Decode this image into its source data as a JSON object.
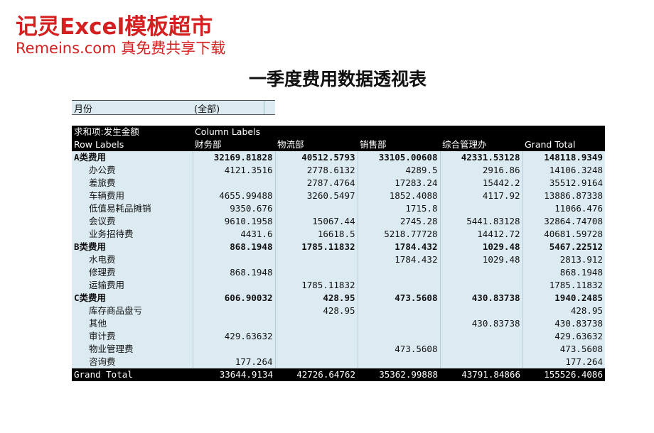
{
  "watermark": {
    "line1": "记灵Excel模板超市",
    "line2": "Remeins.com 真免费共享下载"
  },
  "title": "一季度费用数据透视表",
  "filter": {
    "label": "月份",
    "value": "(全部)"
  },
  "pivot": {
    "value_field": "求和项:发生金额",
    "column_labels": "Column Labels",
    "row_labels": "Row Labels",
    "columns": [
      "财务部",
      "物流部",
      "销售部",
      "综合管理办",
      "Grand Total"
    ],
    "rows": [
      {
        "type": "group",
        "label": "A类费用",
        "values": [
          "32169.81828",
          "40512.5793",
          "33105.00608",
          "42331.53128",
          "148118.9349"
        ]
      },
      {
        "type": "item",
        "label": "办公费",
        "values": [
          "4121.3516",
          "2778.6132",
          "4289.5",
          "2916.86",
          "14106.3248"
        ]
      },
      {
        "type": "item",
        "label": "差旅费",
        "values": [
          "",
          "2787.4764",
          "17283.24",
          "15442.2",
          "35512.9164"
        ]
      },
      {
        "type": "item",
        "label": "车辆费用",
        "values": [
          "4655.99488",
          "3260.5497",
          "1852.4088",
          "4117.92",
          "13886.87338"
        ]
      },
      {
        "type": "item",
        "label": "低值易耗品摊销",
        "values": [
          "9350.676",
          "",
          "1715.8",
          "",
          "11066.476"
        ]
      },
      {
        "type": "item",
        "label": "会议费",
        "values": [
          "9610.1958",
          "15067.44",
          "2745.28",
          "5441.83128",
          "32864.74708"
        ]
      },
      {
        "type": "item",
        "label": "业务招待费",
        "values": [
          "4431.6",
          "16618.5",
          "5218.77728",
          "14412.72",
          "40681.59728"
        ]
      },
      {
        "type": "group",
        "label": "B类费用",
        "values": [
          "868.1948",
          "1785.11832",
          "1784.432",
          "1029.48",
          "5467.22512"
        ]
      },
      {
        "type": "item",
        "label": "水电费",
        "values": [
          "",
          "",
          "1784.432",
          "1029.48",
          "2813.912"
        ]
      },
      {
        "type": "item",
        "label": "修理费",
        "values": [
          "868.1948",
          "",
          "",
          "",
          "868.1948"
        ]
      },
      {
        "type": "item",
        "label": "运输费用",
        "values": [
          "",
          "1785.11832",
          "",
          "",
          "1785.11832"
        ]
      },
      {
        "type": "group",
        "label": "C类费用",
        "values": [
          "606.90032",
          "428.95",
          "473.5608",
          "430.83738",
          "1940.2485"
        ]
      },
      {
        "type": "item",
        "label": "库存商品盘亏",
        "values": [
          "",
          "428.95",
          "",
          "",
          "428.95"
        ]
      },
      {
        "type": "item",
        "label": "其他",
        "values": [
          "",
          "",
          "",
          "430.83738",
          "430.83738"
        ]
      },
      {
        "type": "item",
        "label": "审计费",
        "values": [
          "429.63632",
          "",
          "",
          "",
          "429.63632"
        ]
      },
      {
        "type": "item",
        "label": "物业管理费",
        "values": [
          "",
          "",
          "473.5608",
          "",
          "473.5608"
        ]
      },
      {
        "type": "item",
        "label": "咨询费",
        "values": [
          "177.264",
          "",
          "",
          "",
          "177.264"
        ]
      }
    ],
    "grand_total": {
      "label": "Grand Total",
      "values": [
        "33644.9134",
        "42726.64762",
        "35362.99888",
        "43791.84866",
        "155526.4086"
      ]
    }
  }
}
